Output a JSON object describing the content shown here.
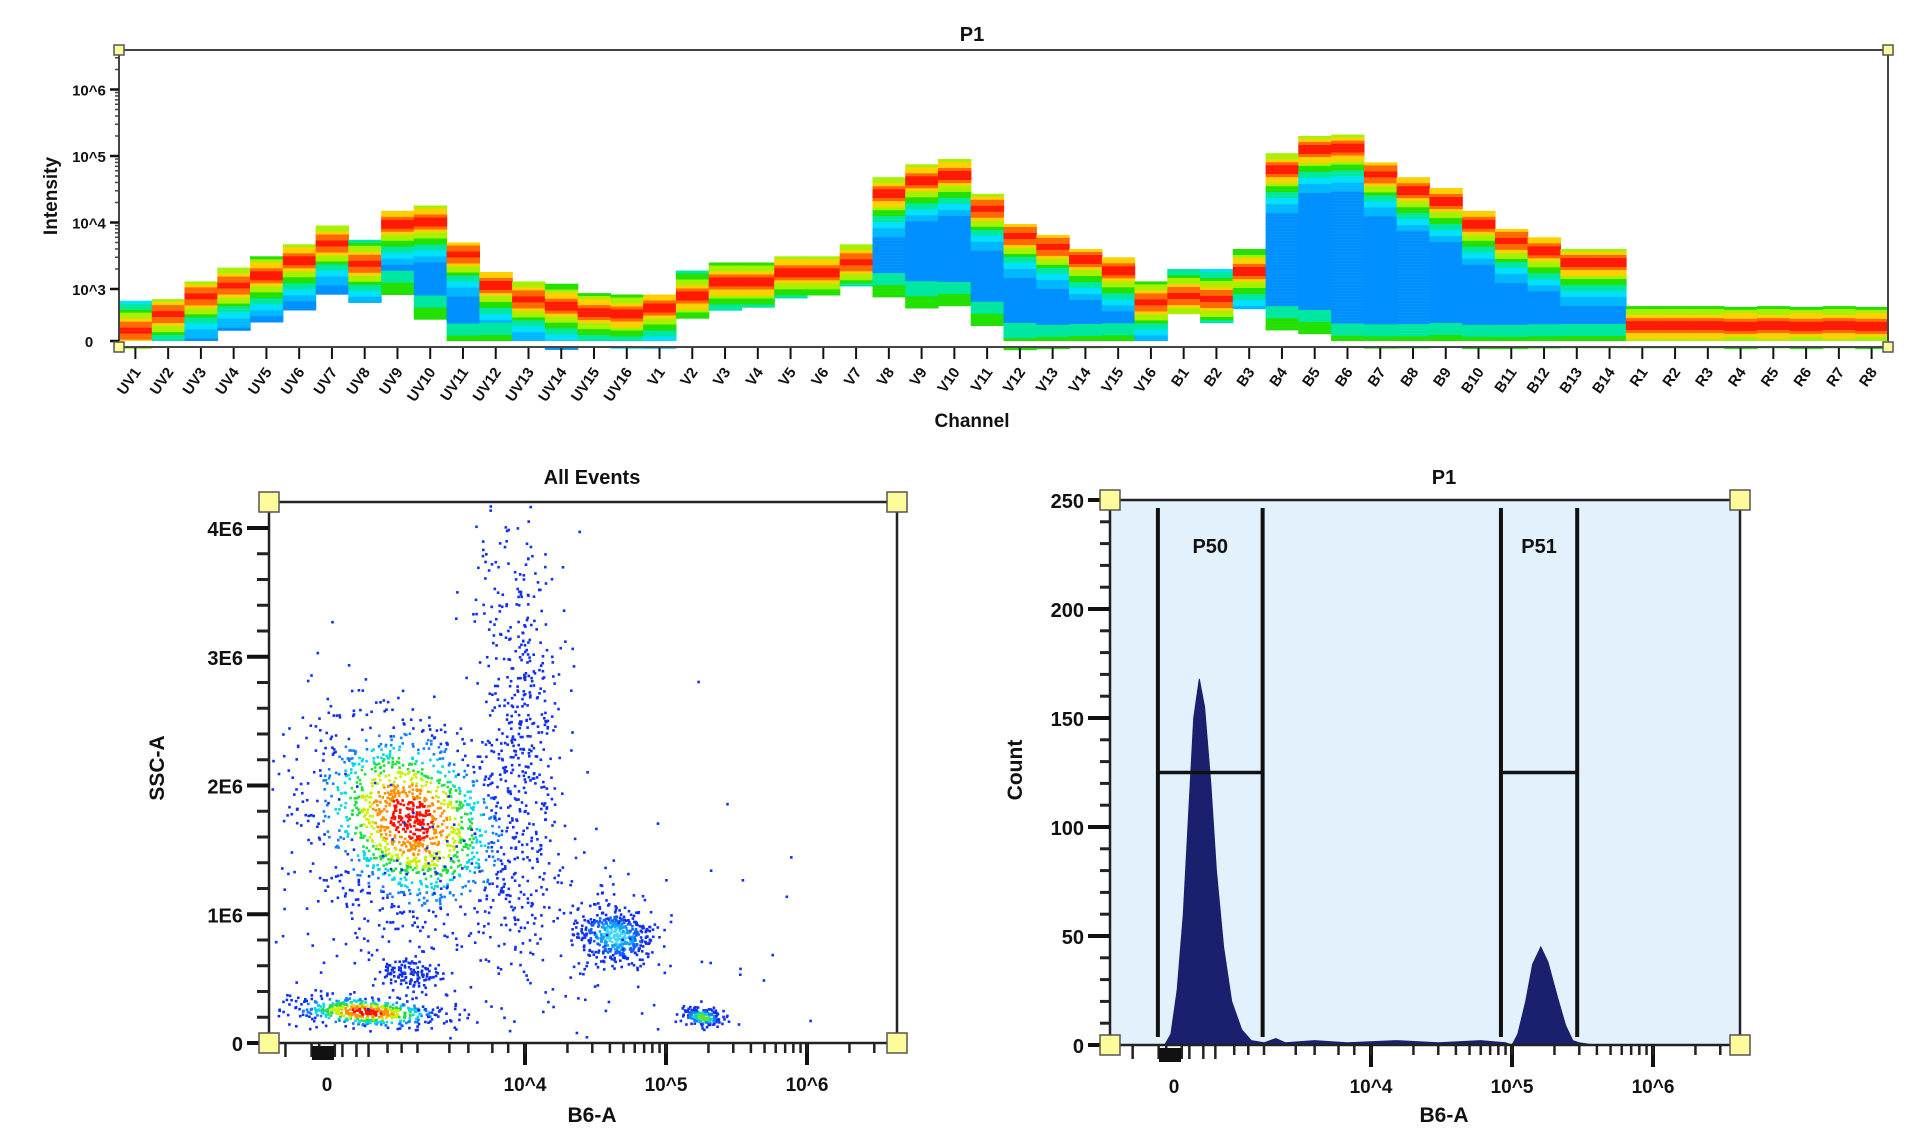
{
  "chart_data": [
    {
      "type": "heatmap",
      "title": "P1",
      "xlabel": "Channel",
      "ylabel": "Intensity",
      "yscale": "biexponential",
      "ytick_labels": [
        "0",
        "10^3",
        "10^4",
        "10^5",
        "10^6"
      ],
      "yticks": [
        0,
        1000,
        10000,
        100000,
        1000000
      ],
      "channels": [
        "UV1",
        "UV2",
        "UV3",
        "UV4",
        "UV5",
        "UV6",
        "UV7",
        "UV8",
        "UV9",
        "UV10",
        "UV11",
        "UV12",
        "UV13",
        "UV14",
        "UV15",
        "UV16",
        "V1",
        "V2",
        "V3",
        "V4",
        "V5",
        "V6",
        "V7",
        "V8",
        "V9",
        "V10",
        "V11",
        "V12",
        "V13",
        "V14",
        "V15",
        "V16",
        "B1",
        "B2",
        "B3",
        "B4",
        "B5",
        "B6",
        "B7",
        "B8",
        "B9",
        "B10",
        "B11",
        "B12",
        "B13",
        "B14",
        "R1",
        "R2",
        "R3",
        "R4",
        "R5",
        "R6",
        "R7",
        "R8"
      ],
      "max_intensity": [
        600,
        650,
        1300,
        2100,
        3100,
        4700,
        9000,
        5500,
        15000,
        18000,
        5000,
        1800,
        1300,
        1200,
        850,
        800,
        800,
        1900,
        2500,
        2500,
        3100,
        3100,
        4700,
        48000,
        75000,
        90000,
        27000,
        9500,
        6500,
        4000,
        3000,
        1300,
        2000,
        2000,
        4000,
        110000,
        200000,
        210000,
        80000,
        48000,
        33000,
        15000,
        8000,
        6000,
        4000,
        4000,
        450,
        450,
        450,
        430,
        450,
        430,
        450,
        430
      ],
      "min_intensity": [
        0,
        0,
        0,
        50,
        150,
        350,
        800,
        600,
        800,
        200,
        0,
        0,
        0,
        0,
        0,
        0,
        0,
        200,
        400,
        450,
        750,
        800,
        1200,
        750,
        450,
        500,
        100,
        0,
        0,
        0,
        0,
        0,
        300,
        150,
        400,
        50,
        30,
        0,
        0,
        0,
        0,
        0,
        0,
        0,
        0,
        0,
        0,
        0,
        0,
        0,
        0,
        0,
        0,
        0
      ],
      "mode_intensity": [
        50,
        300,
        800,
        1200,
        1700,
        2800,
        5000,
        2500,
        10000,
        11000,
        3500,
        1200,
        700,
        500,
        350,
        300,
        450,
        800,
        1300,
        1300,
        1900,
        1900,
        2700,
        28000,
        45000,
        55000,
        17000,
        6500,
        4500,
        3000,
        2000,
        600,
        800,
        700,
        2000,
        65000,
        130000,
        135000,
        55000,
        32000,
        22000,
        10000,
        5500,
        4000,
        2600,
        2600,
        100,
        100,
        100,
        100,
        100,
        100,
        100,
        100
      ]
    },
    {
      "type": "scatter",
      "title": "All Events",
      "xlabel": "B6-A",
      "ylabel": "SSC-A",
      "xscale": "biexponential",
      "xtick_labels": [
        "0",
        "10^4",
        "10^5",
        "10^6"
      ],
      "xticks": [
        0,
        10000,
        100000,
        1000000
      ],
      "ytick_labels": [
        "0",
        "1E6",
        "2E6",
        "3E6",
        "4E6"
      ],
      "yticks": [
        0,
        1000000,
        2000000,
        3000000,
        4000000
      ],
      "ylim": [
        0,
        4200000
      ],
      "populations": [
        {
          "x": 830,
          "y": 1750000,
          "sx": 0.35,
          "sy": 380000,
          "n": 1400,
          "peak_color": "red"
        },
        {
          "x": 270,
          "y": 250000,
          "sx": 0.25,
          "sy": 60000,
          "n": 500,
          "peak_color": "red"
        },
        {
          "x": 780,
          "y": 550000,
          "sx": 0.12,
          "sy": 60000,
          "n": 120,
          "peak_color": "blue"
        },
        {
          "x": 42600,
          "y": 840000,
          "sx": 0.13,
          "sy": 110000,
          "n": 450,
          "peak_color": "cyan"
        },
        {
          "x": 178000,
          "y": 210000,
          "sx": 0.07,
          "sy": 40000,
          "n": 150,
          "peak_color": "green"
        },
        {
          "x": 9000,
          "y": 2600000,
          "sx": 0.15,
          "sy": 800000,
          "n": 450,
          "peak_color": "blue"
        },
        {
          "x": 3000,
          "y": 1000000,
          "sx": 0.9,
          "sy": 600000,
          "n": 350,
          "peak_color": "blue"
        }
      ]
    },
    {
      "type": "area",
      "title": "P1",
      "xlabel": "B6-A",
      "ylabel": "Count",
      "xscale": "biexponential",
      "xtick_labels": [
        "0",
        "10^4",
        "10^5",
        "10^6"
      ],
      "xticks": [
        0,
        10000,
        100000,
        1000000
      ],
      "ytick_labels": [
        "0",
        "50",
        "100",
        "150",
        "200",
        "250"
      ],
      "yticks": [
        0,
        50,
        100,
        150,
        200,
        250
      ],
      "ylim": [
        0,
        250
      ],
      "fill_color": "#1a1f6e",
      "background_color": "#e3f1fc",
      "points": [
        [
          -200,
          0
        ],
        [
          -60,
          0
        ],
        [
          -20,
          5
        ],
        [
          20,
          25
        ],
        [
          60,
          60
        ],
        [
          90,
          100
        ],
        [
          130,
          150
        ],
        [
          170,
          168
        ],
        [
          210,
          155
        ],
        [
          260,
          120
        ],
        [
          310,
          80
        ],
        [
          380,
          45
        ],
        [
          470,
          20
        ],
        [
          600,
          7
        ],
        [
          750,
          2
        ],
        [
          1000,
          1
        ],
        [
          1300,
          3
        ],
        [
          1600,
          1
        ],
        [
          3000,
          2
        ],
        [
          6000,
          1
        ],
        [
          15000,
          2
        ],
        [
          30000,
          1
        ],
        [
          60000,
          2
        ],
        [
          90000,
          1
        ],
        [
          100000,
          0
        ],
        [
          110000,
          5
        ],
        [
          125000,
          20
        ],
        [
          140000,
          37
        ],
        [
          160000,
          45
        ],
        [
          180000,
          38
        ],
        [
          210000,
          22
        ],
        [
          240000,
          9
        ],
        [
          270000,
          2
        ],
        [
          300000,
          1
        ],
        [
          380000,
          0
        ],
        [
          4000000,
          0
        ]
      ],
      "gates": [
        {
          "name": "P50",
          "x_min": -105,
          "x_max": 970,
          "y": 125
        },
        {
          "name": "P51",
          "x_min": 83500,
          "x_max": 290000,
          "y": 125
        }
      ]
    }
  ]
}
